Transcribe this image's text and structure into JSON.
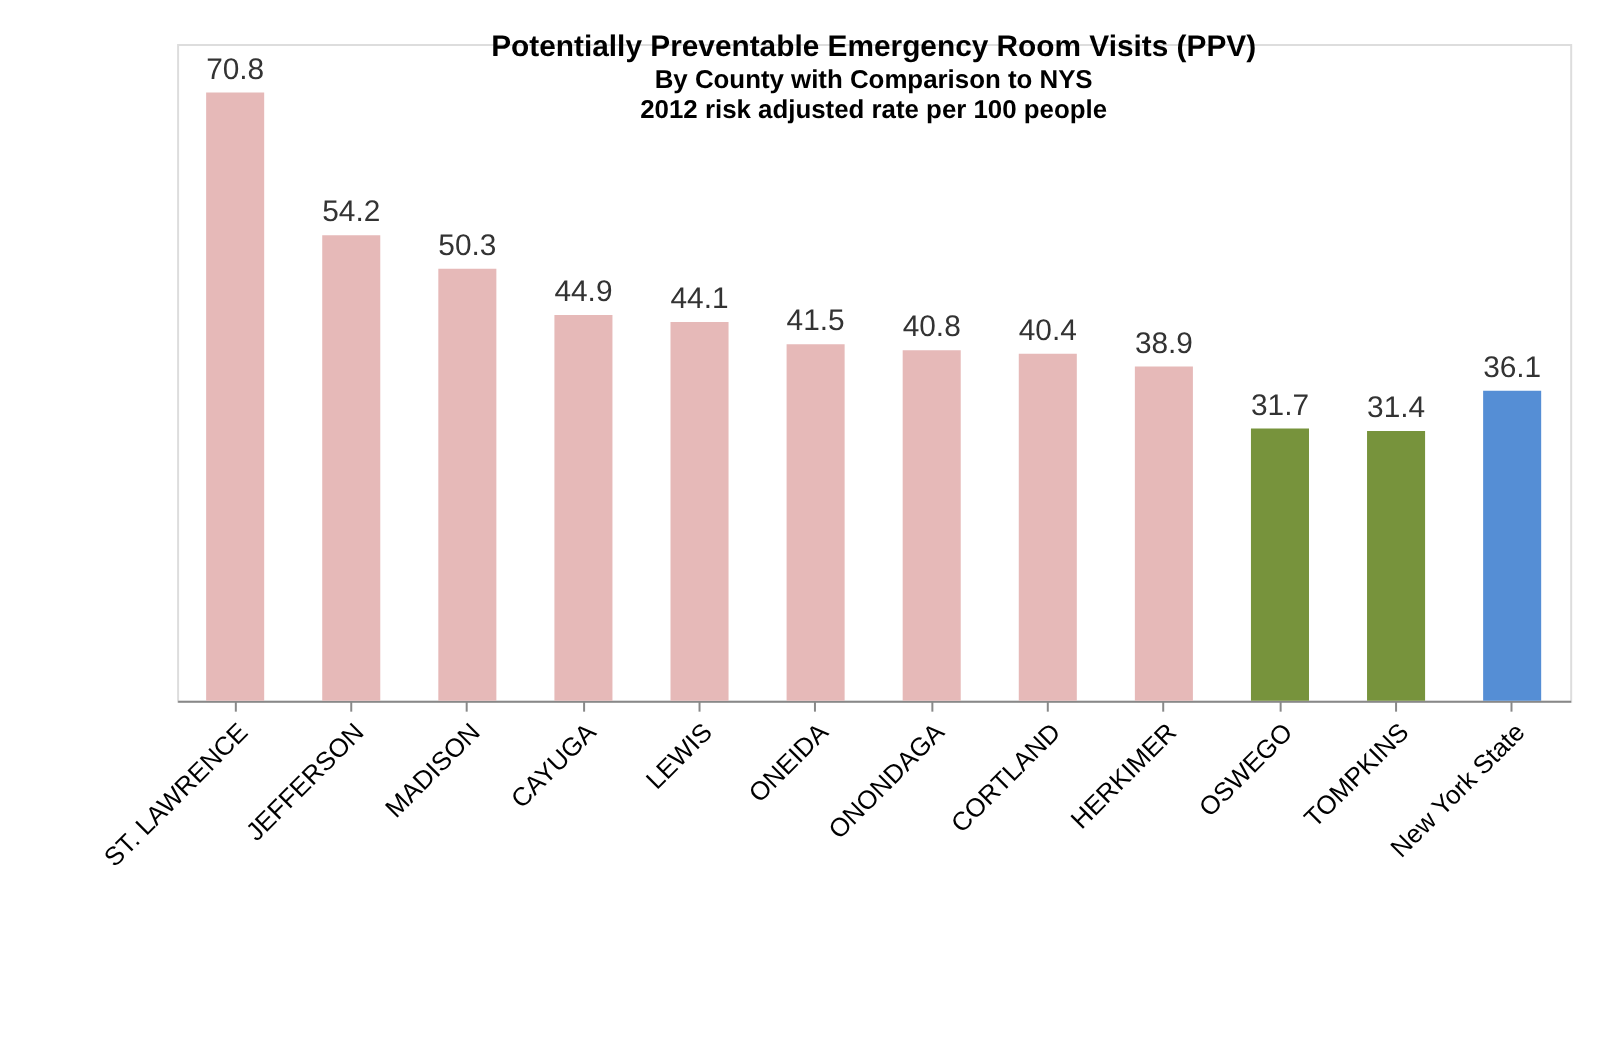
{
  "chart_data": {
    "type": "bar",
    "title": "Potentially Preventable Emergency Room Visits (PPV)",
    "subtitle": "By County with Comparison to NYS\n2012 risk adjusted rate per 100 people",
    "categories": [
      "ST. LAWRENCE",
      "JEFFERSON",
      "MADISON",
      "CAYUGA",
      "LEWIS",
      "ONEIDA",
      "ONONDAGA",
      "CORTLAND",
      "HERKIMER",
      "OSWEGO",
      "TOMPKINS",
      "New York State"
    ],
    "values": [
      70.8,
      54.2,
      50.3,
      44.9,
      44.1,
      41.5,
      40.8,
      40.4,
      38.9,
      31.7,
      31.4,
      36.1
    ],
    "colors": [
      "#e6b9b8",
      "#e6b9b8",
      "#e6b9b8",
      "#e6b9b8",
      "#e6b9b8",
      "#e6b9b8",
      "#e6b9b8",
      "#e6b9b8",
      "#e6b9b8",
      "#77933c",
      "#77933c",
      "#558ed5"
    ],
    "data_labels": true,
    "grid": false
  }
}
